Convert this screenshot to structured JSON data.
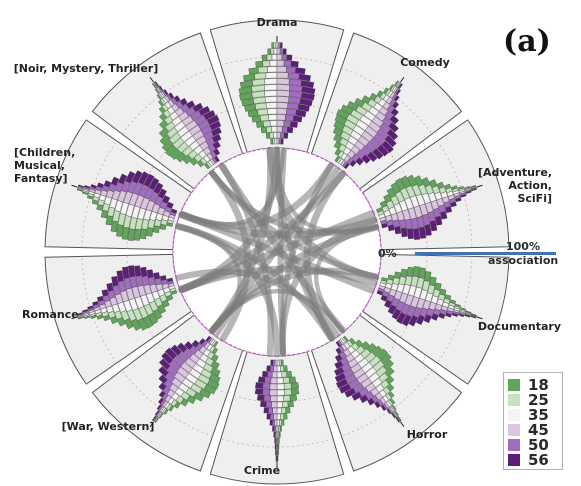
{
  "panel_label": "(a)",
  "chart_data": {
    "type": "radial-histogram-chord",
    "categories": [
      {
        "label": [
          "Drama"
        ]
      },
      {
        "label": [
          "Comedy"
        ]
      },
      {
        "label": [
          "[Adventure,",
          "Action,",
          "SciFi]"
        ]
      },
      {
        "label": [
          "Documentary"
        ]
      },
      {
        "label": [
          "Horror"
        ]
      },
      {
        "label": [
          "Crime"
        ]
      },
      {
        "label": [
          "[War, Western]"
        ]
      },
      {
        "label": [
          "Romance"
        ]
      },
      {
        "label": [
          "[Children,",
          "Musical,",
          "Fantasy]"
        ]
      },
      {
        "label": [
          "[Noir, Mystery, Thriller]"
        ]
      }
    ],
    "scale": {
      "min_label": "0%",
      "max_label": "100%",
      "max_sublabel": "association"
    },
    "legend": [
      {
        "label": "18",
        "color": "#5fa55a"
      },
      {
        "label": "25",
        "color": "#c4e3bd"
      },
      {
        "label": "35",
        "color": "#f4f4f4"
      },
      {
        "label": "45",
        "color": "#dbc6e2"
      },
      {
        "label": "50",
        "color": "#a26cc0"
      },
      {
        "label": "56",
        "color": "#5b1f78"
      }
    ],
    "histogram_profiles": [
      [
        0.22,
        0.36,
        0.5,
        0.62,
        0.72,
        0.8,
        0.86,
        0.9,
        0.92,
        0.9,
        0.84,
        0.74,
        0.6,
        0.44,
        0.3,
        0.18,
        0.1
      ],
      [
        0.25,
        0.38,
        0.52,
        0.64,
        0.74,
        0.8,
        0.84,
        0.86,
        0.8,
        0.7,
        0.58,
        0.46,
        0.34,
        0.24,
        0.16,
        0.1,
        0.06
      ],
      [
        0.35,
        0.5,
        0.64,
        0.76,
        0.84,
        0.88,
        0.86,
        0.8,
        0.7,
        0.58,
        0.46,
        0.34,
        0.24,
        0.16,
        0.1,
        0.06,
        0.04
      ],
      [
        0.3,
        0.44,
        0.58,
        0.7,
        0.78,
        0.82,
        0.8,
        0.72,
        0.6,
        0.48,
        0.36,
        0.26,
        0.18,
        0.12,
        0.08,
        0.05,
        0.03
      ],
      [
        0.2,
        0.34,
        0.48,
        0.6,
        0.7,
        0.76,
        0.8,
        0.78,
        0.7,
        0.58,
        0.44,
        0.32,
        0.22,
        0.14,
        0.08,
        0.05,
        0.03
      ],
      [
        0.22,
        0.34,
        0.46,
        0.56,
        0.62,
        0.6,
        0.52,
        0.42,
        0.32,
        0.24,
        0.16,
        0.1,
        0.07,
        0.05,
        0.04,
        0.03,
        0.02
      ],
      [
        0.2,
        0.32,
        0.46,
        0.6,
        0.72,
        0.8,
        0.84,
        0.82,
        0.74,
        0.62,
        0.48,
        0.36,
        0.24,
        0.16,
        0.1,
        0.06,
        0.04
      ],
      [
        0.28,
        0.42,
        0.56,
        0.68,
        0.78,
        0.84,
        0.86,
        0.84,
        0.76,
        0.64,
        0.5,
        0.38,
        0.26,
        0.18,
        0.12,
        0.08,
        0.05
      ],
      [
        0.3,
        0.46,
        0.6,
        0.74,
        0.84,
        0.9,
        0.92,
        0.9,
        0.84,
        0.74,
        0.6,
        0.46,
        0.32,
        0.22,
        0.14,
        0.08,
        0.05
      ],
      [
        0.26,
        0.4,
        0.54,
        0.66,
        0.76,
        0.82,
        0.84,
        0.8,
        0.72,
        0.6,
        0.46,
        0.34,
        0.24,
        0.16,
        0.1,
        0.06,
        0.04
      ]
    ],
    "chords": [
      {
        "from": 0,
        "to": 3,
        "strength": 0.8
      },
      {
        "from": 0,
        "to": 4,
        "strength": 0.7
      },
      {
        "from": 0,
        "to": 5,
        "strength": 0.6
      },
      {
        "from": 0,
        "to": 6,
        "strength": 0.8
      },
      {
        "from": 0,
        "to": 7,
        "strength": 0.9
      },
      {
        "from": 1,
        "to": 4,
        "strength": 0.8
      },
      {
        "from": 1,
        "to": 5,
        "strength": 0.6
      },
      {
        "from": 1,
        "to": 6,
        "strength": 0.7
      },
      {
        "from": 1,
        "to": 7,
        "strength": 0.9
      },
      {
        "from": 1,
        "to": 8,
        "strength": 0.8
      },
      {
        "from": 2,
        "to": 5,
        "strength": 0.7
      },
      {
        "from": 2,
        "to": 6,
        "strength": 0.8
      },
      {
        "from": 2,
        "to": 7,
        "strength": 0.9
      },
      {
        "from": 2,
        "to": 8,
        "strength": 0.9
      },
      {
        "from": 2,
        "to": 9,
        "strength": 0.6
      },
      {
        "from": 3,
        "to": 6,
        "strength": 0.7
      },
      {
        "from": 3,
        "to": 7,
        "strength": 0.8
      },
      {
        "from": 3,
        "to": 8,
        "strength": 0.8
      },
      {
        "from": 3,
        "to": 9,
        "strength": 0.6
      },
      {
        "from": 4,
        "to": 7,
        "strength": 0.7
      },
      {
        "from": 4,
        "to": 8,
        "strength": 0.7
      },
      {
        "from": 4,
        "to": 9,
        "strength": 0.8
      },
      {
        "from": 5,
        "to": 8,
        "strength": 0.8
      },
      {
        "from": 5,
        "to": 9,
        "strength": 0.7
      },
      {
        "from": 6,
        "to": 9,
        "strength": 0.8
      },
      {
        "from": 0,
        "to": 2,
        "strength": 0.4
      },
      {
        "from": 2,
        "to": 4,
        "strength": 0.4
      },
      {
        "from": 4,
        "to": 6,
        "strength": 0.4
      },
      {
        "from": 6,
        "to": 8,
        "strength": 0.4
      },
      {
        "from": 8,
        "to": 0,
        "strength": 0.4
      }
    ]
  }
}
